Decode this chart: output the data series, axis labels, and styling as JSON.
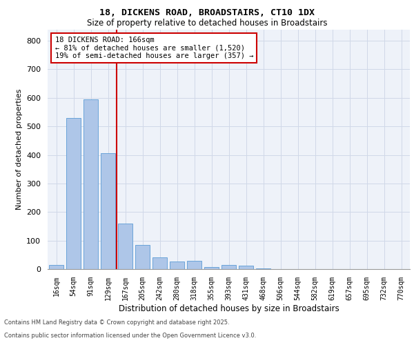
{
  "title_line1": "18, DICKENS ROAD, BROADSTAIRS, CT10 1DX",
  "title_line2": "Size of property relative to detached houses in Broadstairs",
  "xlabel": "Distribution of detached houses by size in Broadstairs",
  "ylabel": "Number of detached properties",
  "categories": [
    "16sqm",
    "54sqm",
    "91sqm",
    "129sqm",
    "167sqm",
    "205sqm",
    "242sqm",
    "280sqm",
    "318sqm",
    "355sqm",
    "393sqm",
    "431sqm",
    "468sqm",
    "506sqm",
    "544sqm",
    "582sqm",
    "619sqm",
    "657sqm",
    "695sqm",
    "732sqm",
    "770sqm"
  ],
  "values": [
    15,
    530,
    595,
    405,
    160,
    85,
    42,
    27,
    28,
    8,
    15,
    13,
    3,
    0,
    0,
    0,
    0,
    0,
    0,
    0,
    0
  ],
  "bar_color": "#aec6e8",
  "bar_edge_color": "#5b9bd5",
  "grid_color": "#d0d8e8",
  "background_color": "#eef2f9",
  "red_line_x": 3.5,
  "annotation_text": "18 DICKENS ROAD: 166sqm\n← 81% of detached houses are smaller (1,520)\n19% of semi-detached houses are larger (357) →",
  "annotation_box_color": "#ffffff",
  "annotation_box_edge": "#cc0000",
  "red_line_color": "#cc0000",
  "ylim": [
    0,
    840
  ],
  "yticks": [
    0,
    100,
    200,
    300,
    400,
    500,
    600,
    700,
    800
  ],
  "footer_line1": "Contains HM Land Registry data © Crown copyright and database right 2025.",
  "footer_line2": "Contains public sector information licensed under the Open Government Licence v3.0."
}
